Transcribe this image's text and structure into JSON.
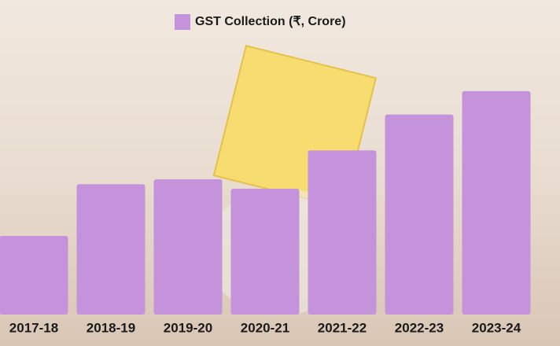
{
  "chart_data": {
    "type": "bar",
    "legend": "GST Collection (₹, Crore)",
    "categories": [
      "2017-18",
      "2018-19",
      "2019-20",
      "2020-21",
      "2021-22",
      "2022-23",
      "2023-24"
    ],
    "values": [
      710000,
      1177000,
      1222000,
      1136000,
      1483000,
      1807000,
      2018000
    ],
    "color": "#c593dc",
    "ylim": [
      0,
      2500000
    ]
  }
}
